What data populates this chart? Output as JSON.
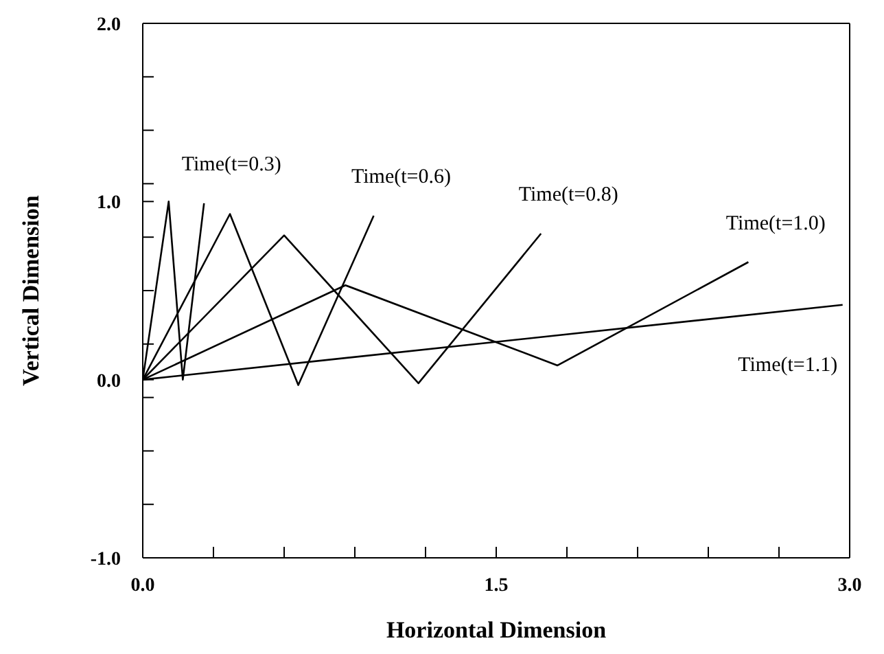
{
  "chart_data": {
    "type": "line",
    "xlabel": "Horizontal Dimension",
    "ylabel": "Vertical Dimension",
    "series": [
      {
        "name": "Time(t=0.3)",
        "color": "#000000",
        "x": [
          0,
          0.11,
          0.17,
          0.26
        ],
        "values": [
          0,
          1.0,
          0.0,
          0.99
        ]
      },
      {
        "name": "Time(t=0.6)",
        "color": "#000000",
        "x": [
          0,
          0.37,
          0.66,
          0.98
        ],
        "values": [
          0,
          0.93,
          -0.03,
          0.92
        ]
      },
      {
        "name": "Time(t=0.8)",
        "color": "#000000",
        "x": [
          0,
          0.6,
          1.17,
          1.69
        ],
        "values": [
          0,
          0.81,
          -0.02,
          0.82
        ]
      },
      {
        "name": "Time(t=1.0)",
        "color": "#000000",
        "x": [
          0,
          0.86,
          1.76,
          2.57
        ],
        "values": [
          0,
          0.53,
          0.08,
          0.66
        ]
      },
      {
        "name": "Time(t=1.1)",
        "color": "#000000",
        "x": [
          0,
          2.97
        ],
        "values": [
          0,
          0.42
        ]
      }
    ],
    "xlim": [
      0,
      3
    ],
    "ylim": [
      -1,
      2
    ],
    "xticks": [
      {
        "value": 0,
        "label": "0.0"
      },
      {
        "value": 0.3,
        "label": null
      },
      {
        "value": 0.6,
        "label": null
      },
      {
        "value": 0.9,
        "label": null
      },
      {
        "value": 1.2,
        "label": null
      },
      1.5,
      {
        "value": 1.8,
        "label": null
      },
      {
        "value": 2.1,
        "label": null
      },
      {
        "value": 2.4,
        "label": null
      },
      {
        "value": 2.7,
        "label": null
      },
      {
        "value": 3,
        "label": "3.0"
      }
    ],
    "yticks": [
      {
        "value": -1,
        "label": "-1.0"
      },
      {
        "value": -0.7,
        "label": null
      },
      {
        "value": -0.4,
        "label": null
      },
      {
        "value": -0.1,
        "label": null
      },
      {
        "value": 0,
        "label": "0.0"
      },
      {
        "value": 0.2,
        "label": null
      },
      {
        "value": 0.5,
        "label": null
      },
      {
        "value": 0.8,
        "label": null
      },
      {
        "value": 1,
        "label": "1.0"
      },
      {
        "value": 1.1,
        "label": null
      },
      {
        "value": 1.4,
        "label": null
      },
      {
        "value": 1.7,
        "label": null
      },
      {
        "value": 2,
        "label": "2.0"
      }
    ],
    "legend": false,
    "marker": "none",
    "line_style": "solid"
  }
}
